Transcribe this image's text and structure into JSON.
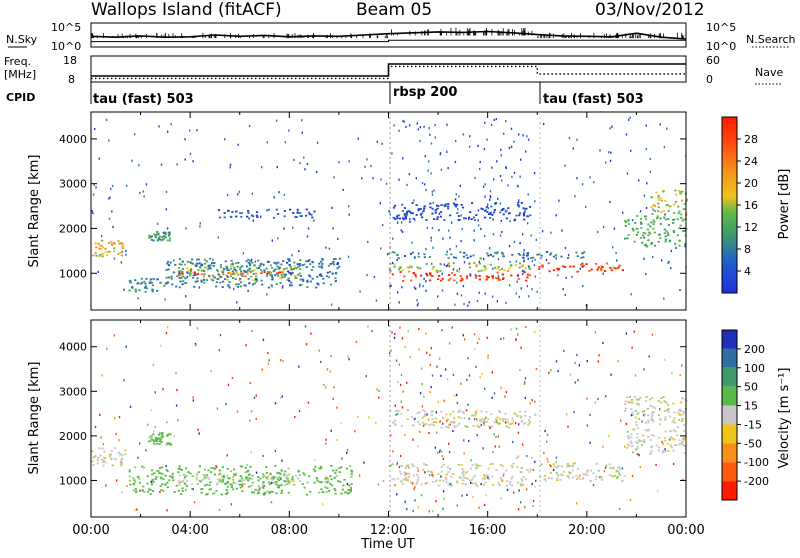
{
  "header": {
    "site": "Wallops Island (fitACF)",
    "beam": "Beam 05",
    "date": "03/Nov/2012"
  },
  "colors": {
    "blue": "#1f3fd0",
    "green": "#3aa24a",
    "yellow": "#f0c21c",
    "red": "#ff1a00",
    "gray": "#c8c8c8"
  },
  "chart_data": [
    {
      "type": "line",
      "panel": "noise",
      "left_label": "N.Sky",
      "right_label": "N.Search",
      "left_ticks": [
        "10^5",
        "10^0"
      ],
      "right_ticks": [
        "10^5",
        "10^0"
      ],
      "series": [
        {
          "name": "N.Sky",
          "x": [
            0,
            1,
            2,
            3,
            4,
            5,
            6,
            7,
            8,
            9,
            10,
            11,
            12,
            13,
            14,
            15,
            16,
            17,
            18,
            19,
            20,
            21,
            22,
            23,
            24
          ],
          "values": [
            2.2,
            2.0,
            2.3,
            2.0,
            2.1,
            2.5,
            2.2,
            2.4,
            2.1,
            2.3,
            2.2,
            2.5,
            2.8,
            3.0,
            3.2,
            3.1,
            3.3,
            3.0,
            2.6,
            2.3,
            2.2,
            2.1,
            2.9,
            2.0,
            1.6
          ]
        },
        {
          "name": "N.Search",
          "x": [
            0,
            12,
            12,
            24
          ],
          "values": [
            1.0,
            1.0,
            1.3,
            1.3
          ]
        }
      ],
      "xlim": [
        0,
        24
      ],
      "ylim": [
        0,
        5
      ]
    },
    {
      "type": "line",
      "panel": "frequency",
      "left_label": "Freq. [MHz]",
      "right_label": "Nave",
      "left_ticks": [
        "18",
        "8"
      ],
      "right_ticks": [
        "60",
        "0"
      ],
      "series": [
        {
          "name": "Freq.",
          "x": [
            0,
            12,
            12,
            24
          ],
          "values": [
            10.5,
            10.5,
            15.5,
            15.5
          ]
        },
        {
          "name": "Nave",
          "x": [
            0,
            12,
            12,
            18,
            18,
            24
          ],
          "values": [
            9,
            9,
            39,
            39,
            20,
            20
          ]
        }
      ],
      "xlim": [
        0,
        24
      ]
    },
    {
      "type": "table",
      "panel": "cpid",
      "label": "CPID",
      "segments": [
        {
          "start": 0,
          "end": 12,
          "text": "tau (fast) 503"
        },
        {
          "start": 12,
          "end": 18,
          "text": "rbsp 200"
        },
        {
          "start": 18,
          "end": 24,
          "text": "tau (fast) 503"
        }
      ]
    },
    {
      "type": "heatmap",
      "panel": "power",
      "ylabel": "Slant Range [km]",
      "xlim": [
        0,
        24
      ],
      "ylim": [
        180,
        4600
      ],
      "yticks": [
        1000,
        2000,
        3000,
        4000
      ],
      "colorbar": {
        "label": "Power [dB]",
        "ticks": [
          4,
          8,
          12,
          16,
          20,
          24,
          28
        ],
        "range": [
          0,
          32
        ]
      },
      "features": [
        {
          "t0": 0.0,
          "t1": 1.4,
          "r0": 1350,
          "r1": 1750,
          "value": 20
        },
        {
          "t0": 1.5,
          "t1": 3.0,
          "r0": 600,
          "r1": 900,
          "value": 10
        },
        {
          "t0": 2.3,
          "t1": 3.2,
          "r0": 1750,
          "r1": 1950,
          "value": 12
        },
        {
          "t0": 3.5,
          "t1": 8.5,
          "r0": 950,
          "r1": 1050,
          "value": 26
        },
        {
          "t0": 3.5,
          "t1": 8.5,
          "r0": 850,
          "r1": 1250,
          "value": 16
        },
        {
          "t0": 3.0,
          "t1": 10.0,
          "r0": 700,
          "r1": 1350,
          "value": 9
        },
        {
          "t0": 5.0,
          "t1": 9.0,
          "r0": 2250,
          "r1": 2450,
          "value": 5
        },
        {
          "t0": 12.0,
          "t1": 17.7,
          "r0": 850,
          "r1": 1050,
          "value": 28
        },
        {
          "t0": 12.0,
          "t1": 17.7,
          "r0": 1050,
          "r1": 1250,
          "value": 18
        },
        {
          "t0": 12.0,
          "t1": 20.0,
          "r0": 1350,
          "r1": 1500,
          "value": 9
        },
        {
          "t0": 12.0,
          "t1": 17.7,
          "r0": 2200,
          "r1": 2600,
          "value": 4
        },
        {
          "t0": 18.0,
          "t1": 21.5,
          "r0": 1050,
          "r1": 1250,
          "value": 28
        },
        {
          "t0": 21.5,
          "t1": 24.0,
          "r0": 1600,
          "r1": 2300,
          "value": 14
        },
        {
          "t0": 22.5,
          "t1": 24.0,
          "r0": 2300,
          "r1": 2900,
          "value": 18
        }
      ]
    },
    {
      "type": "heatmap",
      "panel": "velocity",
      "ylabel": "Slant Range [km]",
      "xlabel": "Time UT",
      "xlim": [
        0,
        24
      ],
      "ylim": [
        180,
        4600
      ],
      "xticks": [
        "00:00",
        "04:00",
        "08:00",
        "12:00",
        "16:00",
        "20:00",
        "00:00"
      ],
      "yticks": [
        1000,
        2000,
        3000,
        4000
      ],
      "colorbar": {
        "label": "Velocity [m s⁻¹]",
        "ticks": [
          200,
          100,
          50,
          15,
          -15,
          -50,
          -100,
          -200
        ],
        "range": [
          -250,
          250
        ]
      },
      "features": [
        {
          "t0": 0.0,
          "t1": 1.4,
          "r0": 1350,
          "r1": 1750,
          "value": 0
        },
        {
          "t0": 2.3,
          "t1": 3.2,
          "r0": 1800,
          "r1": 2100,
          "value": 40
        },
        {
          "t0": 3.5,
          "t1": 8.5,
          "r0": 900,
          "r1": 1150,
          "value": 0
        },
        {
          "t0": 1.5,
          "t1": 10.5,
          "r0": 700,
          "r1": 1350,
          "value": 40
        },
        {
          "t0": 12.0,
          "t1": 17.7,
          "r0": 900,
          "r1": 1400,
          "value": 0
        },
        {
          "t0": 12.0,
          "t1": 17.7,
          "r0": 2200,
          "r1": 2600,
          "value": 0
        },
        {
          "t0": 18.0,
          "t1": 21.5,
          "r0": 1000,
          "r1": 1400,
          "value": 0
        },
        {
          "t0": 21.5,
          "t1": 24.0,
          "r0": 1600,
          "r1": 2900,
          "value": 0
        }
      ]
    }
  ]
}
